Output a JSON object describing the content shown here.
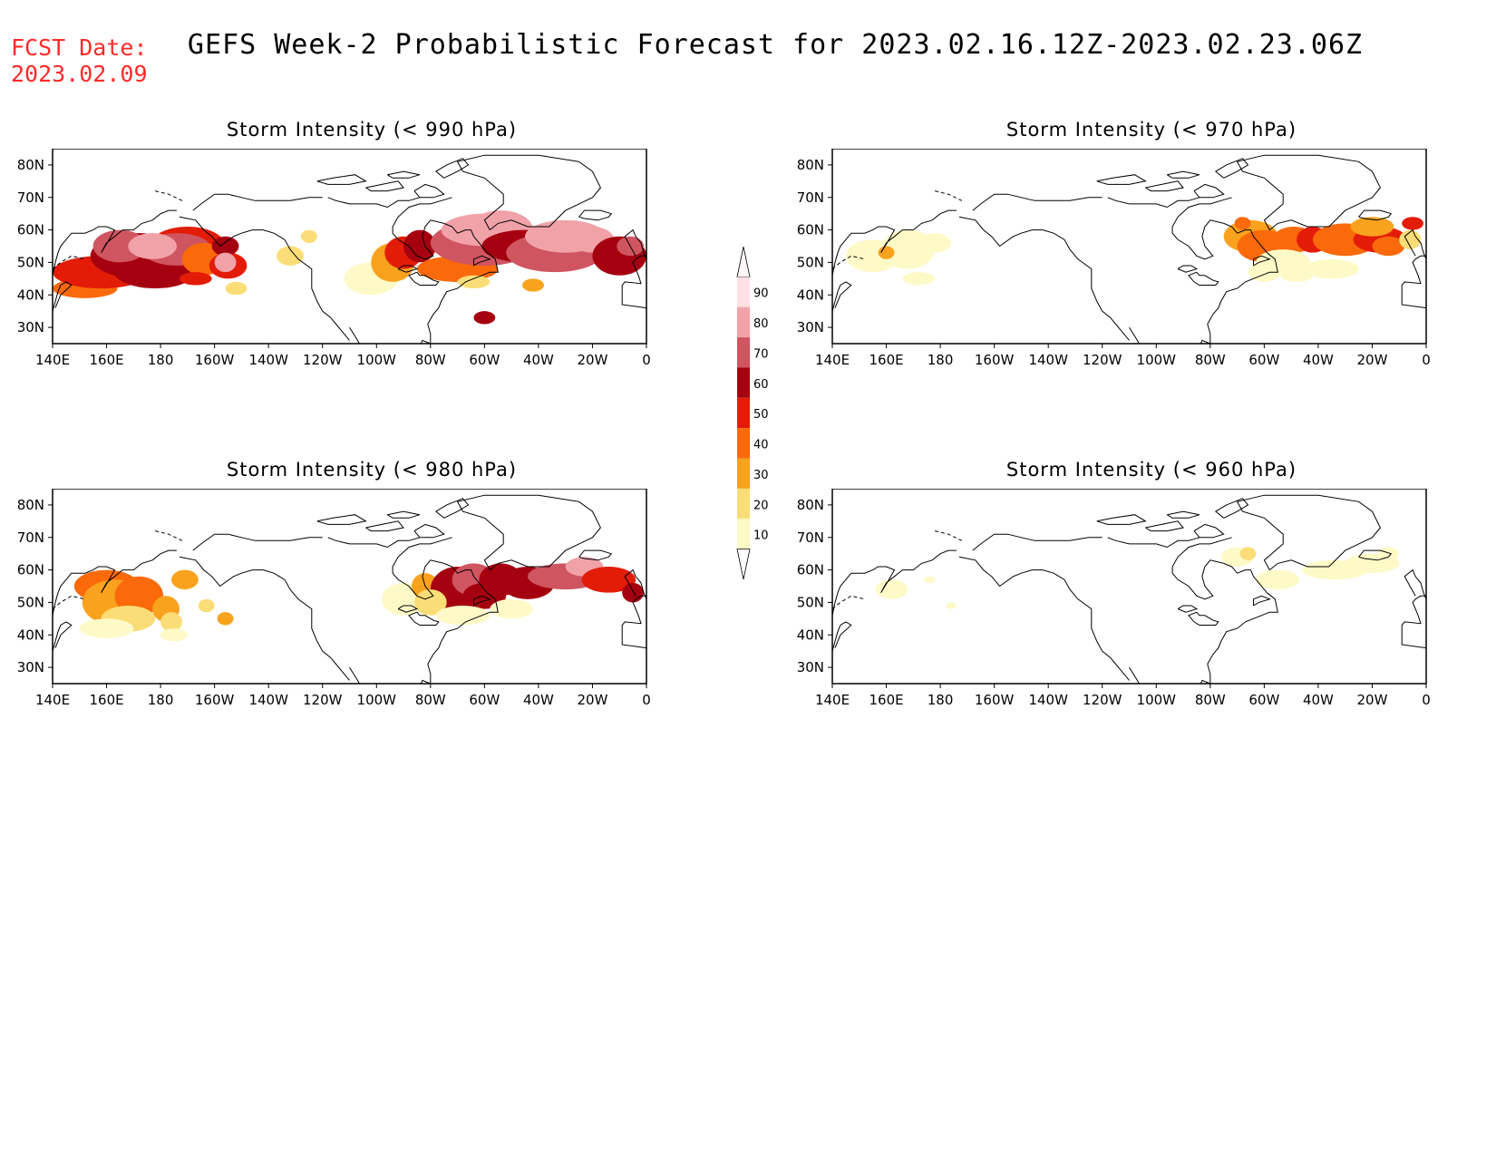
{
  "header": {
    "fcst_label": "FCST Date:",
    "fcst_date": "2023.02.09",
    "title": "GEFS Week-2 Probabilistic Forecast for 2023.02.16.12Z-2023.02.23.06Z"
  },
  "axes": {
    "lon_labels": [
      "140E",
      "160E",
      "180",
      "160W",
      "140W",
      "120W",
      "100W",
      "80W",
      "60W",
      "40W",
      "20W",
      "0"
    ],
    "lat_labels": [
      "80N",
      "70N",
      "60N",
      "50N",
      "40N",
      "30N"
    ]
  },
  "colorbar": {
    "levels": [
      "90",
      "80",
      "70",
      "60",
      "50",
      "40",
      "30",
      "20",
      "10"
    ],
    "colors": [
      "#fde0e3",
      "#f0a2a8",
      "#cf5560",
      "#a50010",
      "#e31c08",
      "#fa6a0a",
      "#f9a21e",
      "#fbdd78",
      "#fefac8"
    ]
  },
  "panels": [
    {
      "id": "990",
      "title": "Storm Intensity (< 990 hPa)"
    },
    {
      "id": "970",
      "title": "Storm Intensity (< 970 hPa)"
    },
    {
      "id": "980",
      "title": "Storm Intensity (< 980 hPa)"
    },
    {
      "id": "960",
      "title": "Storm Intensity (< 960 hPa)"
    }
  ]
}
